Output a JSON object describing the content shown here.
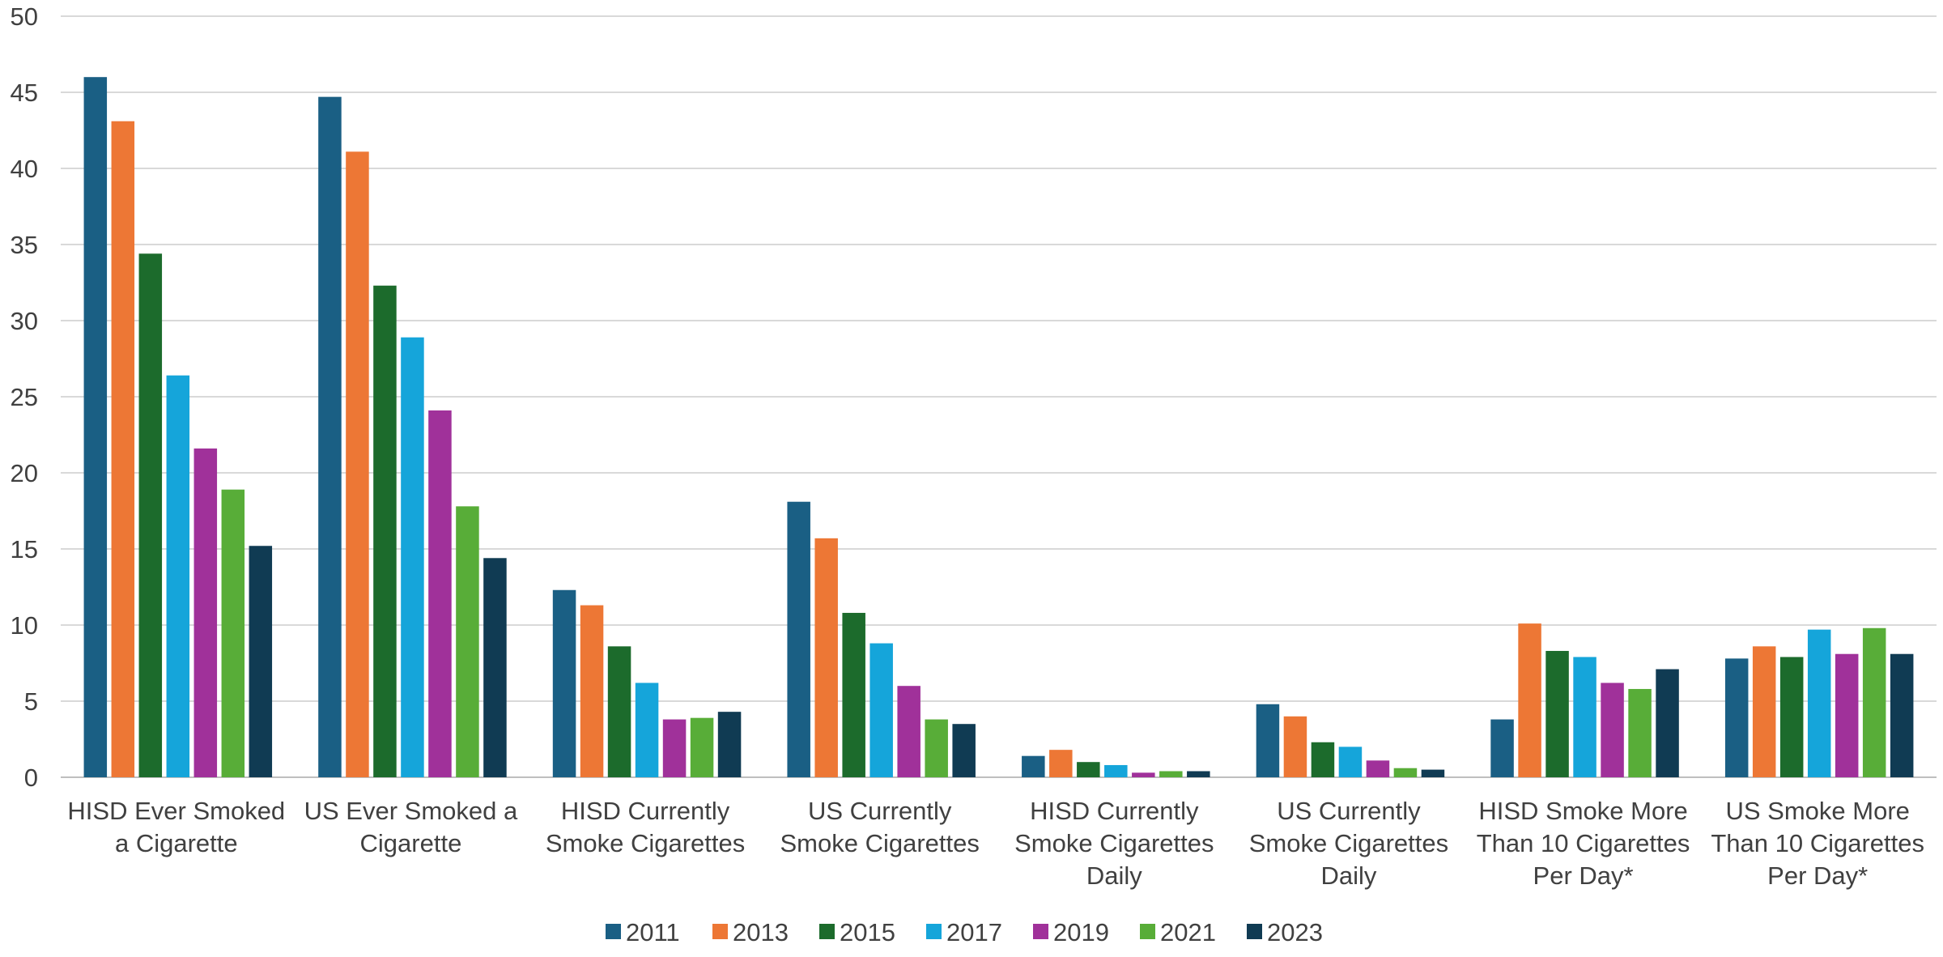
{
  "chart_data": {
    "type": "bar",
    "title": "",
    "xlabel": "",
    "ylabel": "",
    "ylim": [
      0,
      50
    ],
    "yticks": [
      0,
      5,
      10,
      15,
      20,
      25,
      30,
      35,
      40,
      45,
      50
    ],
    "grid": true,
    "legend_position": "bottom",
    "categories": [
      [
        "HISD Ever Smoked",
        "a Cigarette"
      ],
      [
        "US Ever Smoked a",
        "Cigarette"
      ],
      [
        "HISD Currently",
        "Smoke Cigarettes"
      ],
      [
        "US Currently",
        "Smoke Cigarettes"
      ],
      [
        "HISD Currently",
        "Smoke Cigarettes",
        "Daily"
      ],
      [
        "US Currently",
        "Smoke Cigarettes",
        "Daily"
      ],
      [
        "HISD Smoke More",
        "Than 10 Cigarettes",
        "Per Day*"
      ],
      [
        "US Smoke More",
        "Than 10 Cigarettes",
        "Per Day*"
      ]
    ],
    "series": [
      {
        "name": "2011",
        "color": "#1a5f84",
        "values": [
          46.0,
          44.7,
          12.3,
          18.1,
          1.4,
          4.8,
          3.8,
          7.8
        ]
      },
      {
        "name": "2013",
        "color": "#ed7735",
        "values": [
          43.1,
          41.1,
          11.3,
          15.7,
          1.8,
          4.0,
          10.1,
          8.6
        ]
      },
      {
        "name": "2015",
        "color": "#1c6b2c",
        "values": [
          34.4,
          32.3,
          8.6,
          10.8,
          1.0,
          2.3,
          8.3,
          7.9
        ]
      },
      {
        "name": "2017",
        "color": "#15a5da",
        "values": [
          26.4,
          28.9,
          6.2,
          8.8,
          0.8,
          2.0,
          7.9,
          9.7
        ]
      },
      {
        "name": "2019",
        "color": "#a0319a",
        "values": [
          21.6,
          24.1,
          3.8,
          6.0,
          0.3,
          1.1,
          6.2,
          8.1
        ]
      },
      {
        "name": "2021",
        "color": "#58ad38",
        "values": [
          18.9,
          17.8,
          3.9,
          3.8,
          0.4,
          0.6,
          5.8,
          9.8
        ]
      },
      {
        "name": "2023",
        "color": "#103b53",
        "values": [
          15.2,
          14.4,
          4.3,
          3.5,
          0.4,
          0.5,
          7.1,
          8.1
        ]
      }
    ]
  }
}
